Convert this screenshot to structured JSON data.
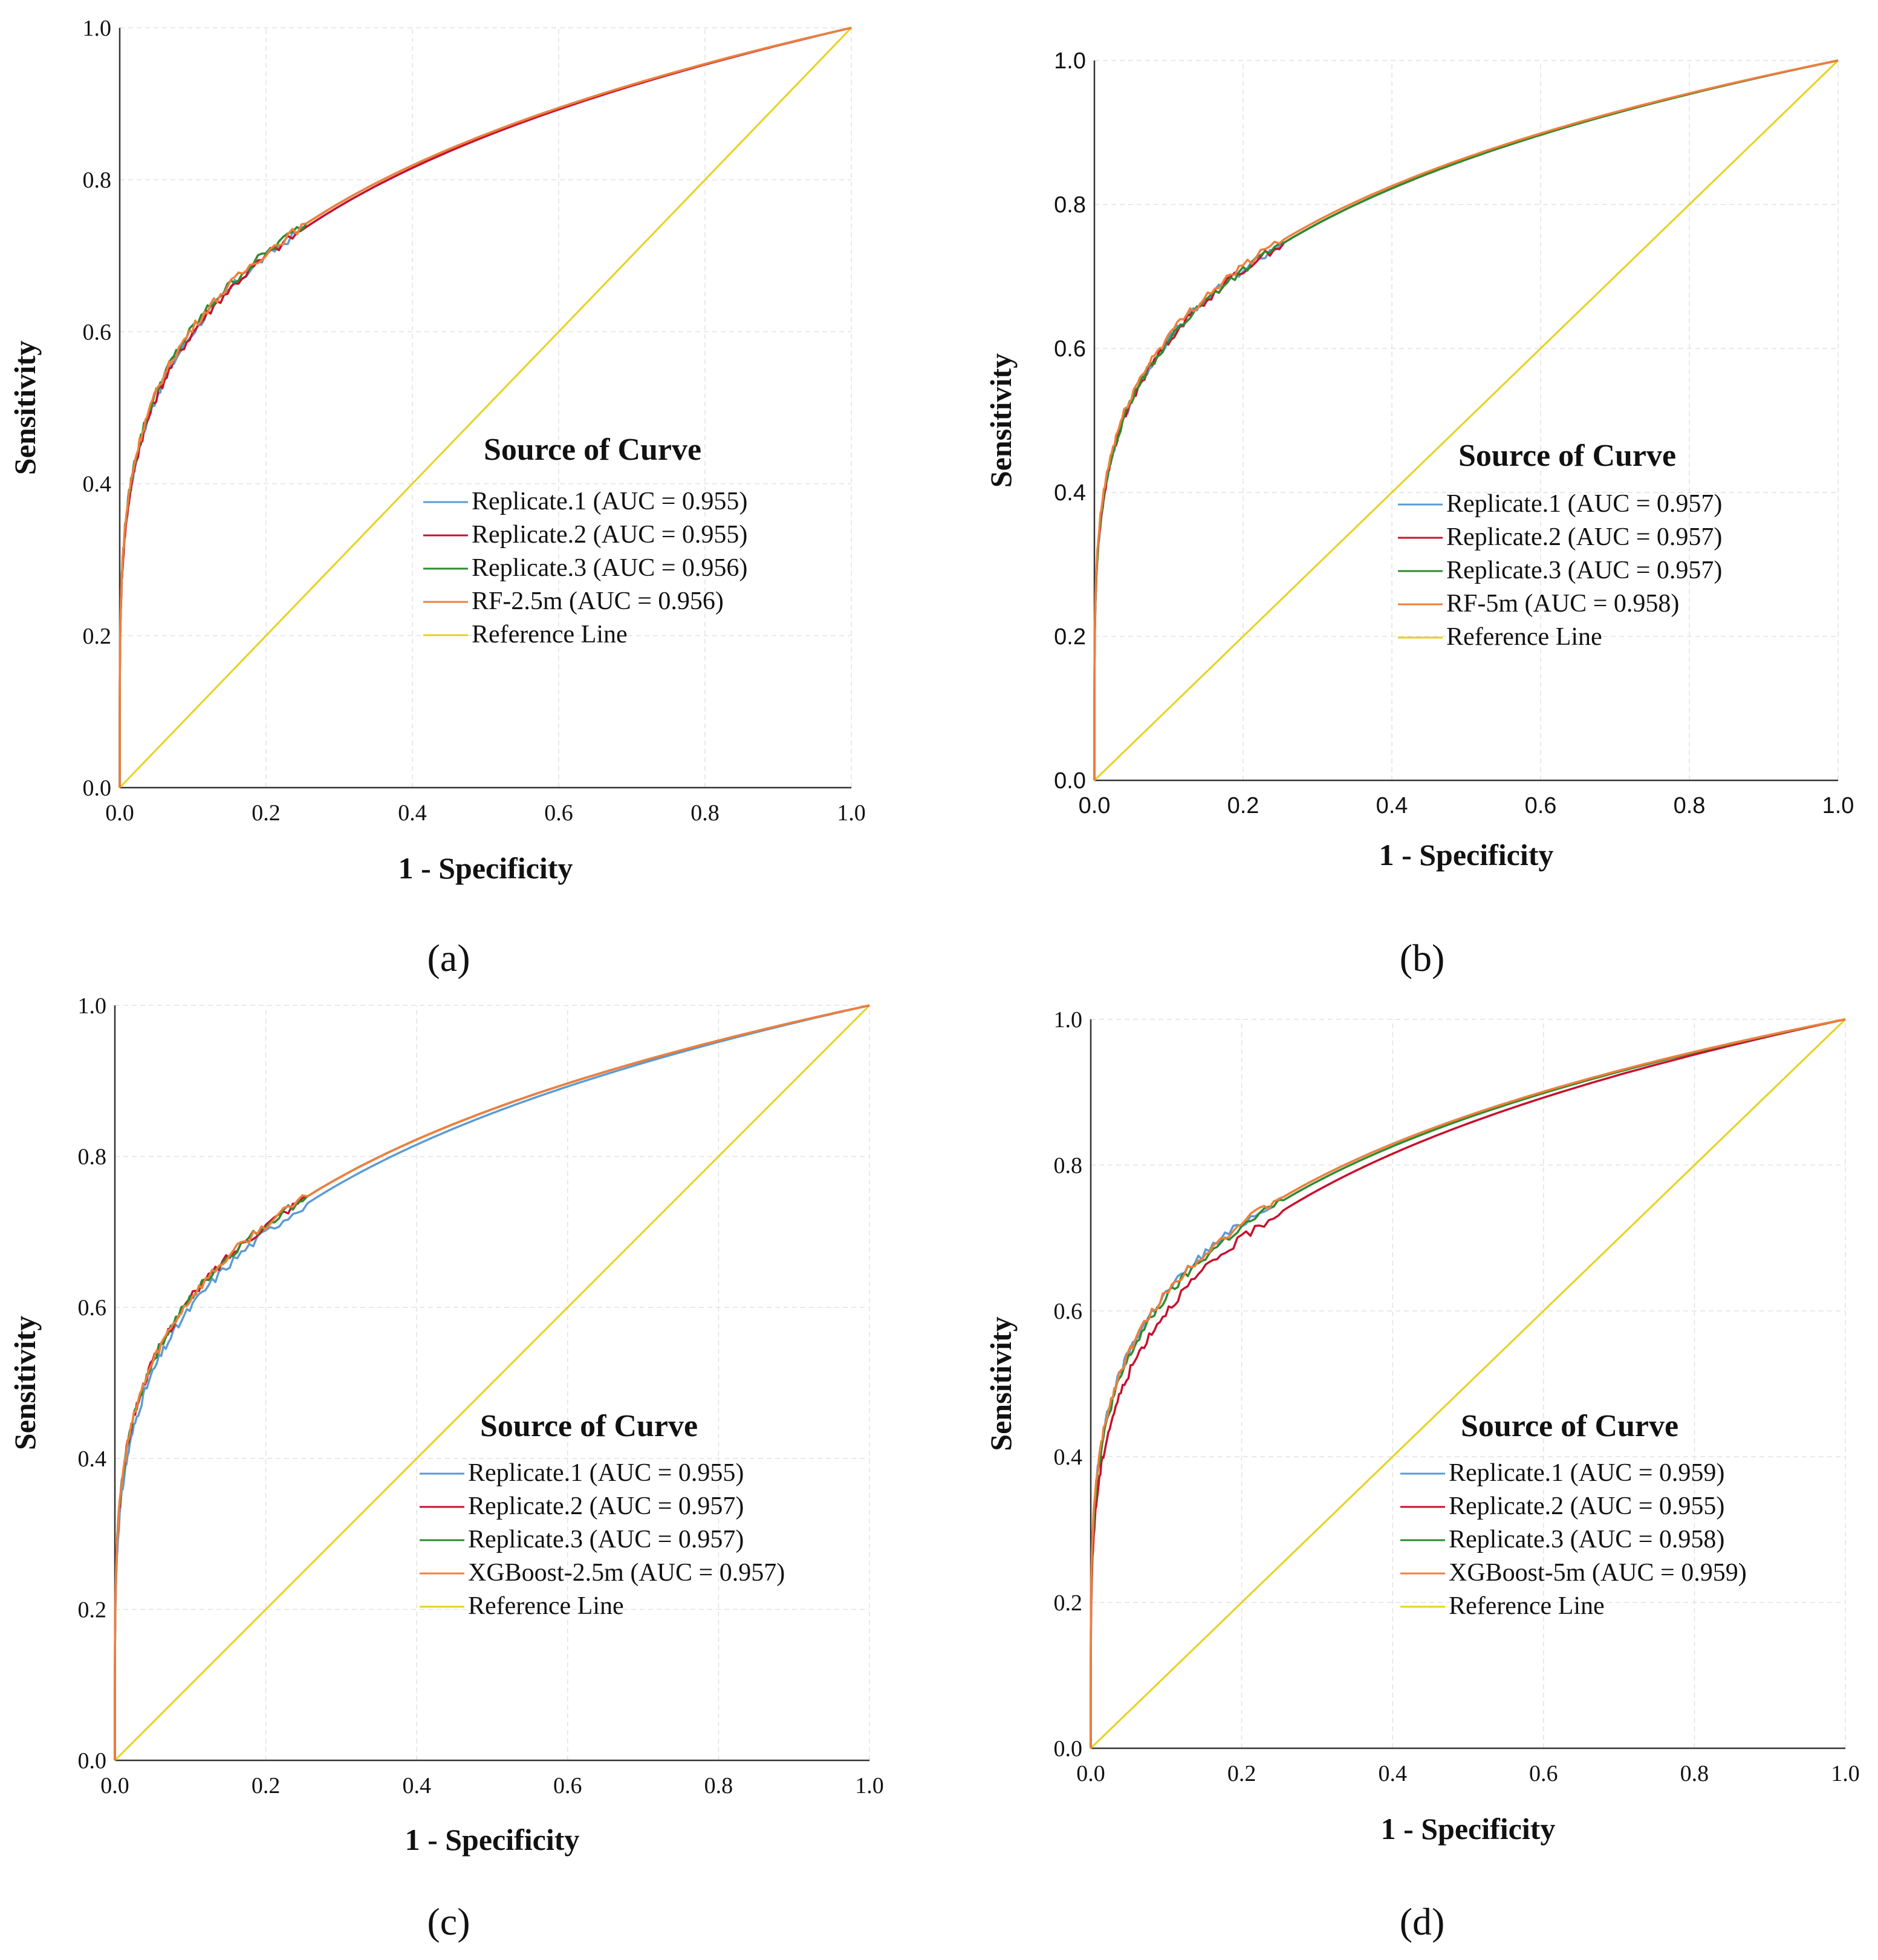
{
  "colors": {
    "replicate1": "#5b9bd5",
    "replicate2": "#c8102e",
    "replicate3": "#2e8b2e",
    "model": "#f07f3c",
    "reference": "#e6d21e",
    "axis": "#333333",
    "grid": "#e2e2e2"
  },
  "chart_data": [
    {
      "panel": "(a)",
      "type": "line",
      "xlabel": "1 - Specificity",
      "ylabel": "Sensitivity",
      "xlim": [
        0,
        1
      ],
      "ylim": [
        0,
        1
      ],
      "x_ticks": [
        "0.0",
        "0.2",
        "0.4",
        "0.6",
        "0.8",
        "1.0"
      ],
      "y_ticks": [
        "0.0",
        "0.2",
        "0.4",
        "0.6",
        "0.8",
        "1.0"
      ],
      "legend_title": "Source of Curve",
      "legend": [
        "Replicate.1 (AUC = 0.955)",
        "Replicate.2 (AUC = 0.955)",
        "Replicate.3 (AUC = 0.956)",
        "RF-2.5m (AUC = 0.956)",
        "Reference Line"
      ],
      "series": [
        {
          "name": "Replicate.1",
          "auc": 0.955,
          "color_key": "replicate1"
        },
        {
          "name": "Replicate.2",
          "auc": 0.955,
          "color_key": "replicate2"
        },
        {
          "name": "Replicate.3",
          "auc": 0.956,
          "color_key": "replicate3"
        },
        {
          "name": "RF-2.5m",
          "auc": 0.956,
          "color_key": "model"
        },
        {
          "name": "Reference Line",
          "x": [
            0,
            1
          ],
          "y": [
            0,
            1
          ],
          "color_key": "reference"
        }
      ]
    },
    {
      "panel": "(b)",
      "type": "line",
      "xlabel": "1 - Specificity",
      "ylabel": "Sensitivity",
      "xlim": [
        0,
        1
      ],
      "ylim": [
        0,
        1
      ],
      "x_ticks": [
        "0.0",
        "0.2",
        "0.4",
        "0.6",
        "0.8",
        "1.0"
      ],
      "y_ticks": [
        "0.0",
        "0.2",
        "0.4",
        "0.6",
        "0.8",
        "1.0"
      ],
      "legend_title": "Source of Curve",
      "legend": [
        "Replicate.1 (AUC = 0.957)",
        "Replicate.2 (AUC = 0.957)",
        "Replicate.3 (AUC = 0.957)",
        "RF-5m (AUC = 0.958)",
        "Reference Line"
      ],
      "series": [
        {
          "name": "Replicate.1",
          "auc": 0.957,
          "color_key": "replicate1"
        },
        {
          "name": "Replicate.2",
          "auc": 0.957,
          "color_key": "replicate2"
        },
        {
          "name": "Replicate.3",
          "auc": 0.957,
          "color_key": "replicate3"
        },
        {
          "name": "RF-5m",
          "auc": 0.958,
          "color_key": "model"
        },
        {
          "name": "Reference Line",
          "x": [
            0,
            1
          ],
          "y": [
            0,
            1
          ],
          "color_key": "reference"
        }
      ]
    },
    {
      "panel": "(c)",
      "type": "line",
      "xlabel": "1 - Specificity",
      "ylabel": "Sensitivity",
      "xlim": [
        0,
        1
      ],
      "ylim": [
        0,
        1
      ],
      "x_ticks": [
        "0.0",
        "0.2",
        "0.4",
        "0.6",
        "0.8",
        "1.0"
      ],
      "y_ticks": [
        "0.0",
        "0.2",
        "0.4",
        "0.6",
        "0.8",
        "1.0"
      ],
      "legend_title": "Source of Curve",
      "legend": [
        "Replicate.1 (AUC = 0.955)",
        "Replicate.2 (AUC = 0.957)",
        "Replicate.3 (AUC = 0.957)",
        "XGBoost-2.5m (AUC = 0.957)",
        "Reference Line"
      ],
      "series": [
        {
          "name": "Replicate.1",
          "auc": 0.955,
          "color_key": "replicate1"
        },
        {
          "name": "Replicate.2",
          "auc": 0.957,
          "color_key": "replicate2"
        },
        {
          "name": "Replicate.3",
          "auc": 0.957,
          "color_key": "replicate3"
        },
        {
          "name": "XGBoost-2.5m",
          "auc": 0.957,
          "color_key": "model"
        },
        {
          "name": "Reference Line",
          "x": [
            0,
            1
          ],
          "y": [
            0,
            1
          ],
          "color_key": "reference"
        }
      ]
    },
    {
      "panel": "(d)",
      "type": "line",
      "xlabel": "1 - Specificity",
      "ylabel": "Sensitivity",
      "xlim": [
        0,
        1
      ],
      "ylim": [
        0,
        1
      ],
      "x_ticks": [
        "0.0",
        "0.2",
        "0.4",
        "0.6",
        "0.8",
        "1.0"
      ],
      "y_ticks": [
        "0.0",
        "0.2",
        "0.4",
        "0.6",
        "0.8",
        "1.0"
      ],
      "legend_title": "Source of Curve",
      "legend": [
        "Replicate.1 (AUC = 0.959)",
        "Replicate.2 (AUC = 0.955)",
        "Replicate.3 (AUC = 0.958)",
        "XGBoost-5m (AUC = 0.959)",
        "Reference Line"
      ],
      "series": [
        {
          "name": "Replicate.1",
          "auc": 0.959,
          "color_key": "replicate1"
        },
        {
          "name": "Replicate.2",
          "auc": 0.955,
          "color_key": "replicate2"
        },
        {
          "name": "Replicate.3",
          "auc": 0.958,
          "color_key": "replicate3"
        },
        {
          "name": "XGBoost-5m",
          "auc": 0.959,
          "color_key": "model"
        },
        {
          "name": "Reference Line",
          "x": [
            0,
            1
          ],
          "y": [
            0,
            1
          ],
          "color_key": "reference"
        }
      ]
    }
  ]
}
